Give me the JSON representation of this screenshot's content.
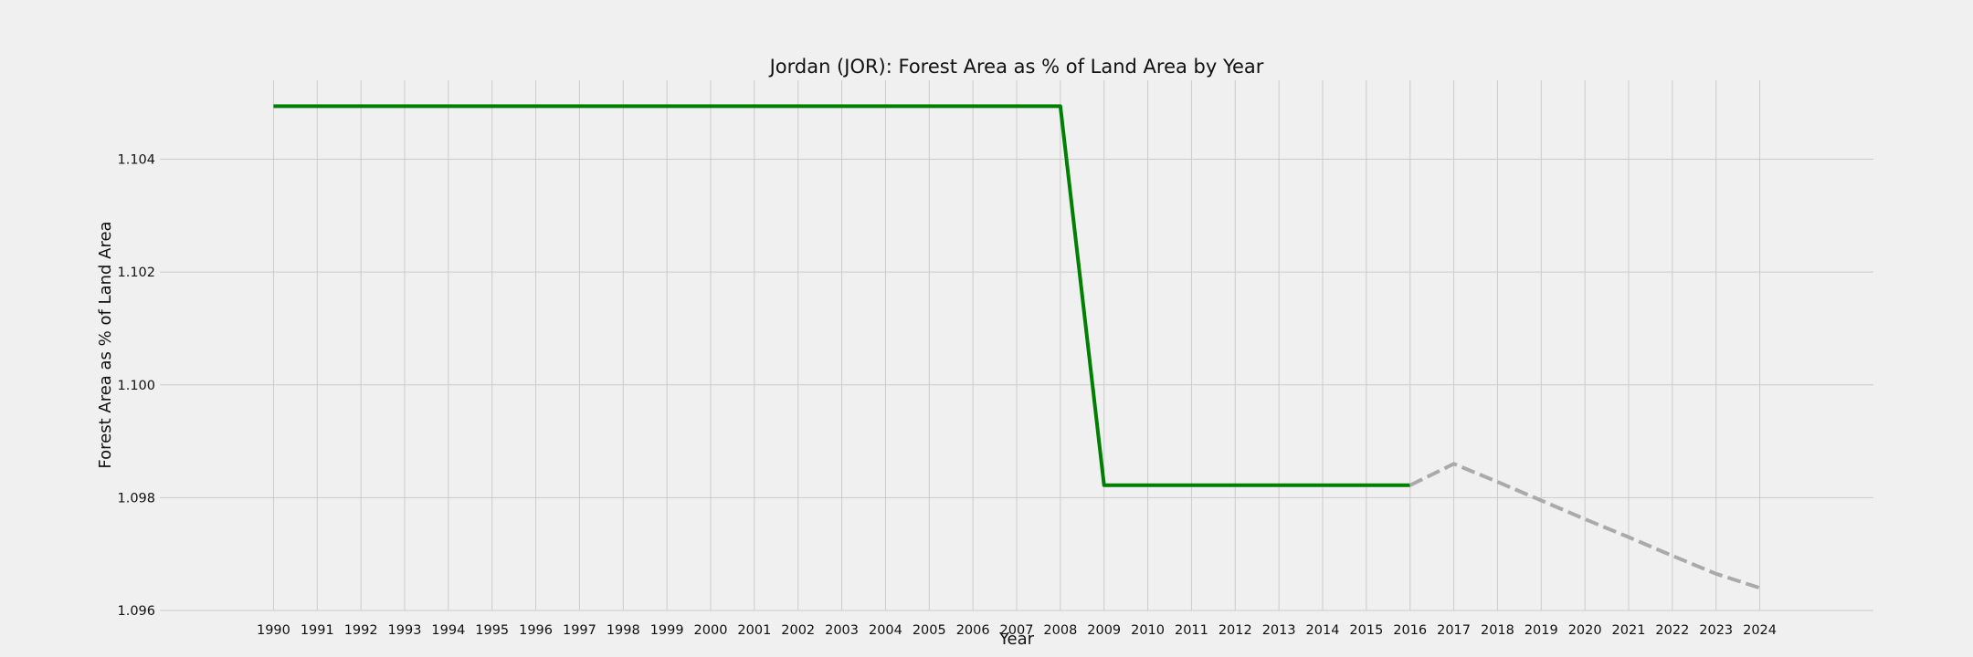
{
  "chart_data": {
    "type": "line",
    "title": "Jordan (JOR): Forest Area as % of Land Area by Year",
    "xlabel": "Year",
    "ylabel": "Forest Area as % of Land Area",
    "xlim": [
      1987.4,
      2026.6
    ],
    "ylim": [
      1.096,
      1.1054
    ],
    "x_ticks": [
      1990,
      1991,
      1992,
      1993,
      1994,
      1995,
      1996,
      1997,
      1998,
      1999,
      2000,
      2001,
      2002,
      2003,
      2004,
      2005,
      2006,
      2007,
      2008,
      2009,
      2010,
      2011,
      2012,
      2013,
      2014,
      2015,
      2016,
      2017,
      2018,
      2019,
      2020,
      2021,
      2022,
      2023,
      2024
    ],
    "y_ticks": [
      "1.096",
      "1.098",
      "1.100",
      "1.102",
      "1.104"
    ],
    "grid": true,
    "series": [
      {
        "style": "solid",
        "color": "#008000",
        "x": [
          1990,
          1991,
          1992,
          1993,
          1994,
          1995,
          1996,
          1997,
          1998,
          1999,
          2000,
          2001,
          2002,
          2003,
          2004,
          2005,
          2006,
          2007,
          2008,
          2009,
          2010,
          2011,
          2012,
          2013,
          2014,
          2015,
          2016
        ],
        "y": [
          1.10494,
          1.10494,
          1.10494,
          1.10494,
          1.10494,
          1.10494,
          1.10494,
          1.10494,
          1.10494,
          1.10494,
          1.10494,
          1.10494,
          1.10494,
          1.10494,
          1.10494,
          1.10494,
          1.10494,
          1.10494,
          1.10494,
          1.09822,
          1.09822,
          1.09822,
          1.09822,
          1.09822,
          1.09822,
          1.09822,
          1.09822
        ]
      },
      {
        "style": "dashed",
        "color": "#aaaaaa",
        "x": [
          2016,
          2017,
          2018,
          2019,
          2020,
          2021,
          2022,
          2023,
          2024
        ],
        "y": [
          1.09822,
          1.0986,
          1.09828,
          1.09795,
          1.09762,
          1.0973,
          1.09697,
          1.09665,
          1.0964
        ]
      }
    ]
  }
}
